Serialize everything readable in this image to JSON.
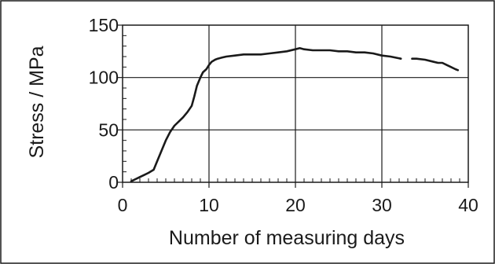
{
  "chart_data": {
    "type": "line",
    "title": "",
    "xlabel": "Number of measuring days",
    "ylabel": "Stress / MPa",
    "xlim": [
      0,
      40
    ],
    "ylim": [
      0,
      150
    ],
    "x_ticks": [
      0,
      10,
      20,
      30,
      40
    ],
    "y_ticks": [
      0,
      50,
      100,
      150
    ],
    "x_tick_labels": [
      "0",
      "10",
      "20",
      "30",
      "40"
    ],
    "y_tick_labels": [
      "0",
      "50",
      "100",
      "150"
    ],
    "grid": true,
    "legend": "none",
    "line_color": "#1a1a1a",
    "series": [
      {
        "segments": [
          [
            [
              1.0,
              1
            ],
            [
              1.5,
              3
            ],
            [
              2.0,
              5
            ],
            [
              2.5,
              7
            ],
            [
              3.0,
              9
            ],
            [
              3.6,
              12
            ],
            [
              4.0,
              20
            ],
            [
              4.5,
              30
            ],
            [
              5.0,
              40
            ],
            [
              5.5,
              48
            ],
            [
              6.0,
              54
            ],
            [
              6.5,
              58
            ],
            [
              7.0,
              62
            ],
            [
              7.5,
              67
            ],
            [
              8.0,
              73
            ],
            [
              8.3,
              82
            ],
            [
              8.6,
              92
            ],
            [
              9.0,
              100
            ],
            [
              9.3,
              105
            ],
            [
              9.7,
              108
            ],
            [
              10.0,
              112
            ],
            [
              10.3,
              115
            ],
            [
              10.7,
              117
            ],
            [
              11.0,
              118
            ],
            [
              11.5,
              119
            ],
            [
              12.0,
              120
            ],
            [
              13.0,
              121
            ],
            [
              14.0,
              122
            ],
            [
              15.0,
              122
            ],
            [
              16.0,
              122
            ],
            [
              17.0,
              123
            ],
            [
              18.0,
              124
            ],
            [
              19.0,
              125
            ],
            [
              20.0,
              127
            ],
            [
              20.5,
              128
            ],
            [
              21.0,
              127
            ],
            [
              22.0,
              126
            ],
            [
              23.0,
              126
            ],
            [
              24.0,
              126
            ],
            [
              25.0,
              125
            ],
            [
              26.0,
              125
            ],
            [
              27.0,
              124
            ],
            [
              28.0,
              124
            ],
            [
              29.0,
              123
            ],
            [
              30.0,
              121
            ],
            [
              31.0,
              120
            ],
            [
              32.2,
              118
            ]
          ],
          [
            [
              33.5,
              118
            ],
            [
              34.0,
              118
            ],
            [
              35.0,
              117
            ],
            [
              36.0,
              115
            ],
            [
              36.5,
              114
            ],
            [
              37.0,
              114
            ],
            [
              37.5,
              112
            ],
            [
              38.0,
              110
            ],
            [
              38.5,
              108
            ],
            [
              38.8,
              107
            ]
          ]
        ]
      }
    ]
  }
}
